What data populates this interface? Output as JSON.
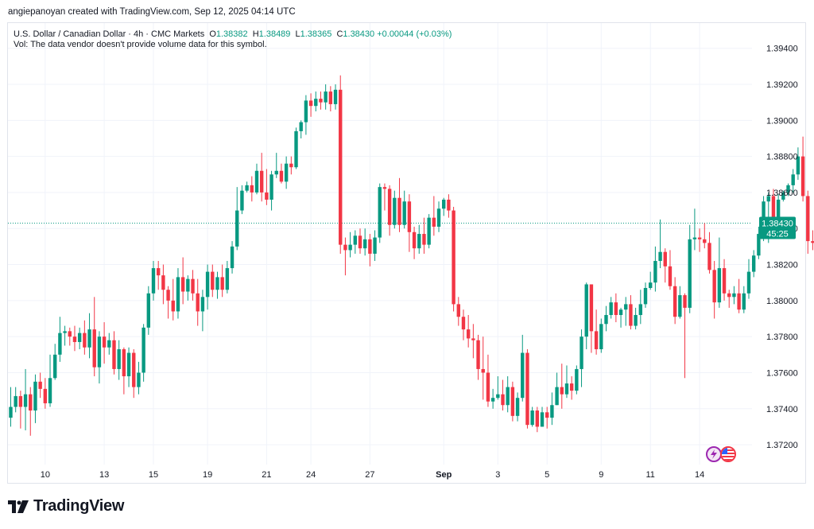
{
  "caption": "angiepanoyan created with TradingView.com, Sep 12, 2025 04:14 UTC",
  "legend": {
    "symbol": "U.S. Dollar / Canadian Dollar · 4h · CMC Markets",
    "o_label": "O",
    "o_value": "1.38382",
    "h_label": "H",
    "h_value": "1.38489",
    "l_label": "L",
    "l_value": "1.38365",
    "c_label": "C",
    "c_value": "1.38430",
    "change": "+0.00044 (+0.03%)",
    "volume_note": "Vol: The data vendor doesn't provide volume data for this symbol."
  },
  "brand": {
    "name": "TradingView"
  },
  "colors": {
    "up": "#089981",
    "down": "#f23645",
    "price_tag": "#089981",
    "grid": "#f0f3fa"
  },
  "chart_data": {
    "type": "candlestick",
    "title": "",
    "xlabel": "",
    "ylabel": "",
    "ylim": [
      1.3709,
      1.3954
    ],
    "y_ticks": [
      "1.37200",
      "1.37400",
      "1.37600",
      "1.37800",
      "1.38000",
      "1.38200",
      "1.38400",
      "1.38600",
      "1.38800",
      "1.39000",
      "1.39200",
      "1.39400"
    ],
    "x_ticks": [
      {
        "label": "10",
        "bar": 7
      },
      {
        "label": "13",
        "bar": 19
      },
      {
        "label": "15",
        "bar": 29
      },
      {
        "label": "19",
        "bar": 40
      },
      {
        "label": "21",
        "bar": 52
      },
      {
        "label": "24",
        "bar": 61
      },
      {
        "label": "27",
        "bar": 73
      },
      {
        "label": "Sep",
        "bar": 88
      },
      {
        "label": "3",
        "bar": 99
      },
      {
        "label": "5",
        "bar": 109
      },
      {
        "label": "9",
        "bar": 120
      },
      {
        "label": "11",
        "bar": 130
      },
      {
        "label": "14",
        "bar": 140
      }
    ],
    "last_price": "1.38430",
    "last_price_value": 1.3843,
    "countdown": "45:25",
    "candles": [
      [
        1.3735,
        1.3741,
        1.373,
        1.3752
      ],
      [
        1.3741,
        1.3747,
        1.3738,
        1.3752
      ],
      [
        1.3747,
        1.3741,
        1.3729,
        1.375
      ],
      [
        1.3741,
        1.3748,
        1.3728,
        1.3762
      ],
      [
        1.3748,
        1.3739,
        1.3725,
        1.3752
      ],
      [
        1.3739,
        1.3755,
        1.3732,
        1.3759
      ],
      [
        1.3755,
        1.3751,
        1.3746,
        1.376
      ],
      [
        1.3751,
        1.3743,
        1.374,
        1.3757
      ],
      [
        1.3743,
        1.3757,
        1.3741,
        1.377
      ],
      [
        1.3757,
        1.377,
        1.3756,
        1.3776
      ],
      [
        1.377,
        1.3782,
        1.3766,
        1.3791
      ],
      [
        1.3782,
        1.3783,
        1.3775,
        1.3786
      ],
      [
        1.3783,
        1.378,
        1.3775,
        1.3785
      ],
      [
        1.378,
        1.3777,
        1.3772,
        1.3786
      ],
      [
        1.3777,
        1.3782,
        1.3773,
        1.3785
      ],
      [
        1.3782,
        1.3774,
        1.377,
        1.3789
      ],
      [
        1.3774,
        1.3784,
        1.3768,
        1.3793
      ],
      [
        1.3784,
        1.3763,
        1.3758,
        1.3802
      ],
      [
        1.3763,
        1.378,
        1.3754,
        1.3783
      ],
      [
        1.378,
        1.3774,
        1.3765,
        1.3788
      ],
      [
        1.3774,
        1.3778,
        1.377,
        1.3782
      ],
      [
        1.3778,
        1.3762,
        1.3759,
        1.3783
      ],
      [
        1.3762,
        1.3773,
        1.3756,
        1.3778
      ],
      [
        1.3773,
        1.3758,
        1.3748,
        1.3774
      ],
      [
        1.3758,
        1.3771,
        1.3752,
        1.3774
      ],
      [
        1.3771,
        1.3752,
        1.3746,
        1.3773
      ],
      [
        1.3752,
        1.376,
        1.3748,
        1.3766
      ],
      [
        1.376,
        1.3785,
        1.3755,
        1.3787
      ],
      [
        1.3785,
        1.3804,
        1.3781,
        1.3808
      ],
      [
        1.3804,
        1.3818,
        1.38,
        1.3822
      ],
      [
        1.3818,
        1.3814,
        1.3806,
        1.3822
      ],
      [
        1.3814,
        1.3806,
        1.3798,
        1.382
      ],
      [
        1.3806,
        1.38,
        1.379,
        1.3808
      ],
      [
        1.38,
        1.3794,
        1.3789,
        1.3812
      ],
      [
        1.3794,
        1.3813,
        1.379,
        1.3818
      ],
      [
        1.3813,
        1.3805,
        1.3798,
        1.3824
      ],
      [
        1.3805,
        1.3812,
        1.38,
        1.3814
      ],
      [
        1.3812,
        1.3804,
        1.38,
        1.3817
      ],
      [
        1.3804,
        1.3794,
        1.3786,
        1.3812
      ],
      [
        1.3794,
        1.3802,
        1.3783,
        1.3806
      ],
      [
        1.3802,
        1.3816,
        1.3795,
        1.382
      ],
      [
        1.3816,
        1.3806,
        1.3802,
        1.382
      ],
      [
        1.3806,
        1.3813,
        1.3801,
        1.3816
      ],
      [
        1.3813,
        1.3806,
        1.3802,
        1.382
      ],
      [
        1.3806,
        1.3818,
        1.3804,
        1.3822
      ],
      [
        1.3818,
        1.383,
        1.3815,
        1.3833
      ],
      [
        1.383,
        1.385,
        1.3828,
        1.3863
      ],
      [
        1.385,
        1.3861,
        1.3848,
        1.3864
      ],
      [
        1.3861,
        1.3864,
        1.386,
        1.3866
      ],
      [
        1.3864,
        1.386,
        1.3855,
        1.3869
      ],
      [
        1.386,
        1.3872,
        1.3859,
        1.3876
      ],
      [
        1.3872,
        1.386,
        1.3855,
        1.3882
      ],
      [
        1.386,
        1.3856,
        1.3853,
        1.3873
      ],
      [
        1.3856,
        1.387,
        1.385,
        1.3872
      ],
      [
        1.387,
        1.3872,
        1.3868,
        1.3882
      ],
      [
        1.3872,
        1.3866,
        1.3865,
        1.3876
      ],
      [
        1.3866,
        1.3876,
        1.3862,
        1.388
      ],
      [
        1.3876,
        1.3874,
        1.387,
        1.388
      ],
      [
        1.3874,
        1.3894,
        1.3873,
        1.3896
      ],
      [
        1.3894,
        1.3899,
        1.389,
        1.39
      ],
      [
        1.3899,
        1.3911,
        1.3892,
        1.3914
      ],
      [
        1.3911,
        1.3908,
        1.3902,
        1.3915
      ],
      [
        1.3908,
        1.3912,
        1.3905,
        1.3916
      ],
      [
        1.3912,
        1.391,
        1.3906,
        1.3916
      ],
      [
        1.391,
        1.3916,
        1.3906,
        1.392
      ],
      [
        1.3916,
        1.3909,
        1.3905,
        1.3919
      ],
      [
        1.3909,
        1.3917,
        1.3906,
        1.392
      ],
      [
        1.3917,
        1.3831,
        1.3826,
        1.3925
      ],
      [
        1.3831,
        1.3828,
        1.3814,
        1.3835
      ],
      [
        1.3828,
        1.3831,
        1.3824,
        1.3838
      ],
      [
        1.3831,
        1.3836,
        1.3826,
        1.3839
      ],
      [
        1.3836,
        1.3829,
        1.3826,
        1.384
      ],
      [
        1.3829,
        1.3834,
        1.3825,
        1.384
      ],
      [
        1.3834,
        1.3826,
        1.3819,
        1.3837
      ],
      [
        1.3826,
        1.3835,
        1.3822,
        1.3839
      ],
      [
        1.3835,
        1.3863,
        1.3832,
        1.3865
      ],
      [
        1.3863,
        1.3862,
        1.385,
        1.3865
      ],
      [
        1.3862,
        1.3842,
        1.3836,
        1.3864
      ],
      [
        1.3842,
        1.3857,
        1.384,
        1.3861
      ],
      [
        1.3857,
        1.3842,
        1.3838,
        1.3868
      ],
      [
        1.3842,
        1.3855,
        1.384,
        1.3861
      ],
      [
        1.3855,
        1.3838,
        1.3827,
        1.3859
      ],
      [
        1.3838,
        1.3829,
        1.3823,
        1.3841
      ],
      [
        1.3829,
        1.3837,
        1.3826,
        1.3842
      ],
      [
        1.3837,
        1.3831,
        1.3826,
        1.3846
      ],
      [
        1.3831,
        1.3846,
        1.3829,
        1.3848
      ],
      [
        1.3846,
        1.3841,
        1.3836,
        1.3858
      ],
      [
        1.3841,
        1.3851,
        1.3838,
        1.3855
      ],
      [
        1.3851,
        1.3856,
        1.3847,
        1.3857
      ],
      [
        1.3856,
        1.385,
        1.3846,
        1.3859
      ],
      [
        1.385,
        1.3798,
        1.3794,
        1.3852
      ],
      [
        1.3798,
        1.3791,
        1.3786,
        1.3802
      ],
      [
        1.3791,
        1.3784,
        1.3778,
        1.3795
      ],
      [
        1.3784,
        1.3779,
        1.3774,
        1.3792
      ],
      [
        1.3779,
        1.3778,
        1.3768,
        1.3787
      ],
      [
        1.3778,
        1.3762,
        1.3756,
        1.3781
      ],
      [
        1.3762,
        1.376,
        1.3745,
        1.378
      ],
      [
        1.376,
        1.3744,
        1.3741,
        1.377
      ],
      [
        1.3744,
        1.3746,
        1.374,
        1.3751
      ],
      [
        1.3746,
        1.3748,
        1.3745,
        1.3758
      ],
      [
        1.3748,
        1.3742,
        1.3739,
        1.3756
      ],
      [
        1.3742,
        1.3752,
        1.3738,
        1.3758
      ],
      [
        1.3752,
        1.3736,
        1.3733,
        1.3755
      ],
      [
        1.3736,
        1.3746,
        1.3733,
        1.3749
      ],
      [
        1.3746,
        1.3771,
        1.3744,
        1.3781
      ],
      [
        1.3771,
        1.3731,
        1.3729,
        1.3773
      ],
      [
        1.3731,
        1.3739,
        1.373,
        1.3741
      ],
      [
        1.3739,
        1.373,
        1.3727,
        1.3741
      ],
      [
        1.373,
        1.3738,
        1.373,
        1.3741
      ],
      [
        1.3738,
        1.3735,
        1.3729,
        1.3741
      ],
      [
        1.3735,
        1.3742,
        1.3731,
        1.3749
      ],
      [
        1.3742,
        1.3752,
        1.3742,
        1.376
      ],
      [
        1.3752,
        1.3748,
        1.374,
        1.3765
      ],
      [
        1.3748,
        1.3754,
        1.3746,
        1.3764
      ],
      [
        1.3754,
        1.375,
        1.3745,
        1.3758
      ],
      [
        1.375,
        1.3762,
        1.3748,
        1.3764
      ],
      [
        1.3762,
        1.378,
        1.3752,
        1.3784
      ],
      [
        1.378,
        1.3809,
        1.3773,
        1.381
      ],
      [
        1.3809,
        1.3783,
        1.3771,
        1.3809
      ],
      [
        1.3783,
        1.3773,
        1.377,
        1.3795
      ],
      [
        1.3773,
        1.3787,
        1.3771,
        1.379
      ],
      [
        1.3787,
        1.3792,
        1.3783,
        1.3797
      ],
      [
        1.3792,
        1.3799,
        1.379,
        1.3802
      ],
      [
        1.3799,
        1.3792,
        1.3788,
        1.3804
      ],
      [
        1.3792,
        1.3795,
        1.3785,
        1.3796
      ],
      [
        1.3795,
        1.3798,
        1.3786,
        1.3802
      ],
      [
        1.3798,
        1.3786,
        1.3784,
        1.3803
      ],
      [
        1.3786,
        1.3792,
        1.3784,
        1.3796
      ],
      [
        1.3792,
        1.3798,
        1.3787,
        1.3806
      ],
      [
        1.3798,
        1.3807,
        1.3796,
        1.381
      ],
      [
        1.3807,
        1.381,
        1.3806,
        1.3816
      ],
      [
        1.381,
        1.3822,
        1.3805,
        1.383
      ],
      [
        1.3822,
        1.3827,
        1.3818,
        1.3845
      ],
      [
        1.3827,
        1.3819,
        1.381,
        1.3829
      ],
      [
        1.3819,
        1.3808,
        1.3806,
        1.3828
      ],
      [
        1.3808,
        1.3791,
        1.3787,
        1.3813
      ],
      [
        1.3791,
        1.3803,
        1.379,
        1.3808
      ],
      [
        1.3803,
        1.3796,
        1.3757,
        1.3804
      ],
      [
        1.3796,
        1.3834,
        1.3793,
        1.3842
      ],
      [
        1.3834,
        1.3835,
        1.3828,
        1.3851
      ],
      [
        1.3835,
        1.3834,
        1.3827,
        1.384
      ],
      [
        1.3834,
        1.3832,
        1.3829,
        1.3843
      ],
      [
        1.3832,
        1.3817,
        1.3815,
        1.3838
      ],
      [
        1.3817,
        1.3799,
        1.379,
        1.3822
      ],
      [
        1.3799,
        1.3818,
        1.3796,
        1.3835
      ],
      [
        1.3818,
        1.3804,
        1.38,
        1.3823
      ],
      [
        1.3804,
        1.3802,
        1.3796,
        1.3806
      ],
      [
        1.3802,
        1.3804,
        1.3798,
        1.3808
      ],
      [
        1.3804,
        1.3795,
        1.3793,
        1.3812
      ],
      [
        1.3795,
        1.3804,
        1.3793,
        1.3808
      ],
      [
        1.3804,
        1.3816,
        1.3801,
        1.3823
      ],
      [
        1.3816,
        1.3825,
        1.3813,
        1.3828
      ],
      [
        1.3825,
        1.3837,
        1.3823,
        1.3841
      ],
      [
        1.3837,
        1.3855,
        1.3833,
        1.3858
      ],
      [
        1.3855,
        1.3858,
        1.3832,
        1.386
      ],
      [
        1.3858,
        1.3842,
        1.3838,
        1.3862
      ],
      [
        1.3842,
        1.3856,
        1.3838,
        1.3859
      ],
      [
        1.3856,
        1.386,
        1.3855,
        1.3861
      ],
      [
        1.386,
        1.3864,
        1.3858,
        1.3865
      ],
      [
        1.3864,
        1.387,
        1.386,
        1.3873
      ],
      [
        1.387,
        1.388,
        1.3867,
        1.3885
      ],
      [
        1.388,
        1.3858,
        1.3855,
        1.3891
      ],
      [
        1.3858,
        1.3833,
        1.3826,
        1.3861
      ],
      [
        1.3833,
        1.3832,
        1.3828,
        1.3839
      ],
      [
        1.3832,
        1.3838,
        1.383,
        1.3844
      ],
      [
        1.3838,
        1.3843,
        1.3836,
        1.3849
      ]
    ]
  }
}
